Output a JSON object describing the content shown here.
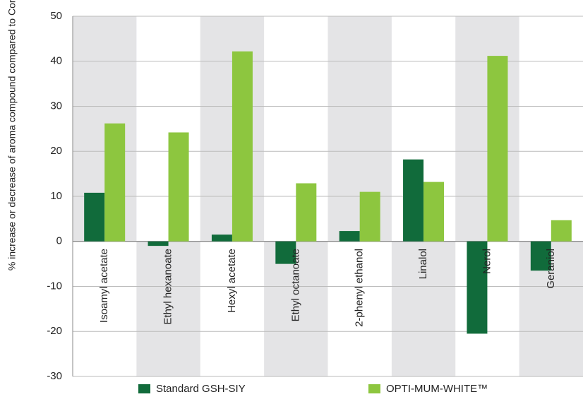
{
  "chart_data": {
    "type": "bar",
    "y_label": "% increase or decrease of aroma compound compared to Control",
    "categories": [
      "Isoamyl acetate",
      "Ethyl hexanoate",
      "Hexyl acetate",
      "Ethyl octanoate",
      "2-phenyl ethanol",
      "Linalol",
      "Nerol",
      "Geraniol"
    ],
    "series": [
      {
        "name": "Standard GSH-SIY",
        "color": "#116b3b",
        "values": [
          10.8,
          -1,
          1.5,
          -5,
          2.3,
          18.2,
          -20.5,
          -6.5
        ]
      },
      {
        "name": "OPTI-MUM-WHITE™",
        "color": "#8dc63f",
        "values": [
          26.2,
          24.2,
          42.2,
          12.9,
          11,
          13.2,
          41.2,
          4.7
        ]
      }
    ],
    "ylim": [
      -30,
      50
    ],
    "yticks": [
      -30,
      -20,
      -10,
      0,
      10,
      20,
      30,
      40,
      50
    ],
    "grid": true
  }
}
